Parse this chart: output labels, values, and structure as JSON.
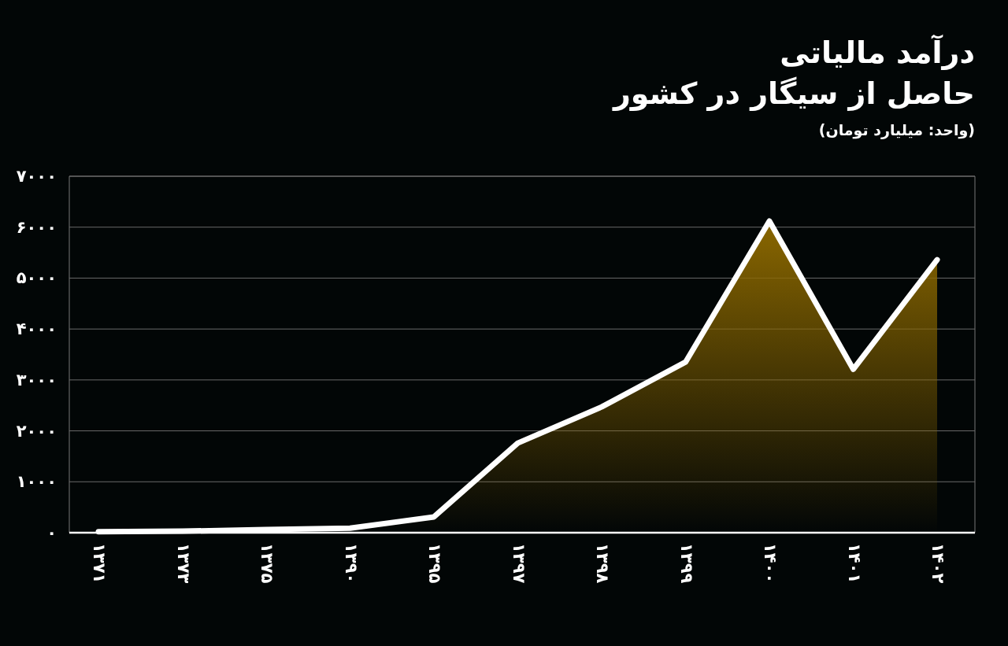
{
  "chart_data": {
    "type": "area",
    "title": "درآمد مالیاتی\nحاصل از سیگار در کشور",
    "subtitle": "(واحد: میلیارد تومان)",
    "categories": [
      "۱۳۷۱",
      "۱۳۷۳",
      "۱۳۷۵",
      "۱۳۹۰",
      "۱۳۹۵",
      "۱۳۹۷",
      "۱۳۹۸",
      "۱۳۹۹",
      "۱۴۰۰",
      "۱۴۰۱",
      "۱۴۰۲"
    ],
    "series": [
      {
        "color": "#ffffff",
        "values": [
          20,
          30,
          60,
          90,
          310,
          1760,
          2470,
          3350,
          6120,
          3210,
          5360
        ]
      }
    ],
    "ylim": [
      0,
      7000
    ],
    "yticks": [
      {
        "value": 0,
        "label": "۰"
      },
      {
        "value": 1000,
        "label": "۱۰۰۰"
      },
      {
        "value": 2000,
        "label": "۲۰۰۰"
      },
      {
        "value": 3000,
        "label": "۳۰۰۰"
      },
      {
        "value": 4000,
        "label": "۴۰۰۰"
      },
      {
        "value": 5000,
        "label": "۵۰۰۰"
      },
      {
        "value": 6000,
        "label": "۶۰۰۰"
      },
      {
        "value": 7000,
        "label": "۷۰۰۰"
      }
    ],
    "grid": "y"
  }
}
